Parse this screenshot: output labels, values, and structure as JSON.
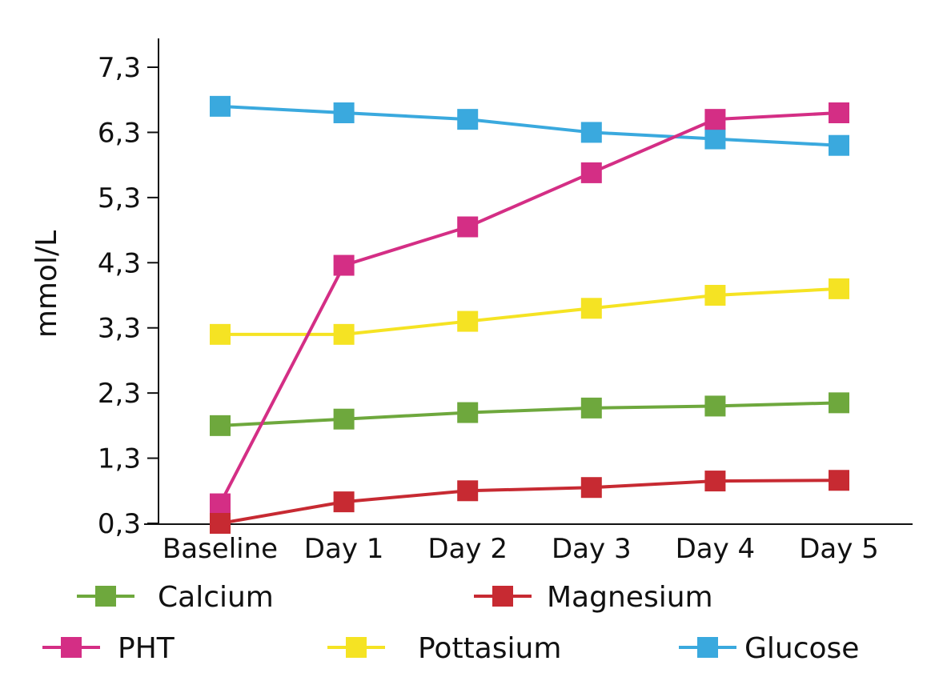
{
  "chart_data": {
    "type": "line",
    "title": "",
    "xlabel": "",
    "ylabel": "mmol/L",
    "categories": [
      "Baseline",
      "Day 1",
      "Day 2",
      "Day 3",
      "Day 4",
      "Day 5"
    ],
    "yticks": [
      "7,3",
      "6,3",
      "5,3",
      "4,3",
      "3,3",
      "2,3",
      "1,3",
      "0,3"
    ],
    "ytick_values": [
      7.3,
      6.3,
      5.3,
      4.3,
      3.3,
      2.3,
      1.3,
      0.3
    ],
    "ylim": [
      0.3,
      7.3
    ],
    "grid": false,
    "legend_position": "bottom",
    "marker": "square",
    "series": [
      {
        "name": "Calcium",
        "color": "#6EA83D",
        "values": [
          1.8,
          1.9,
          2.0,
          2.07,
          2.1,
          2.15
        ]
      },
      {
        "name": "Magnesium",
        "color": "#C72A32",
        "values": [
          0.3,
          0.63,
          0.8,
          0.85,
          0.95,
          0.96
        ]
      },
      {
        "name": "PHT",
        "color": "#D42E85",
        "values": [
          0.6,
          4.26,
          4.85,
          5.68,
          6.5,
          6.6
        ]
      },
      {
        "name": "Pottasium",
        "color": "#F5E323",
        "values": [
          3.2,
          3.2,
          3.4,
          3.6,
          3.8,
          3.9
        ]
      },
      {
        "name": "Glucose",
        "color": "#3AA9DE",
        "values": [
          6.7,
          6.6,
          6.5,
          6.3,
          6.2,
          6.1
        ]
      }
    ]
  }
}
